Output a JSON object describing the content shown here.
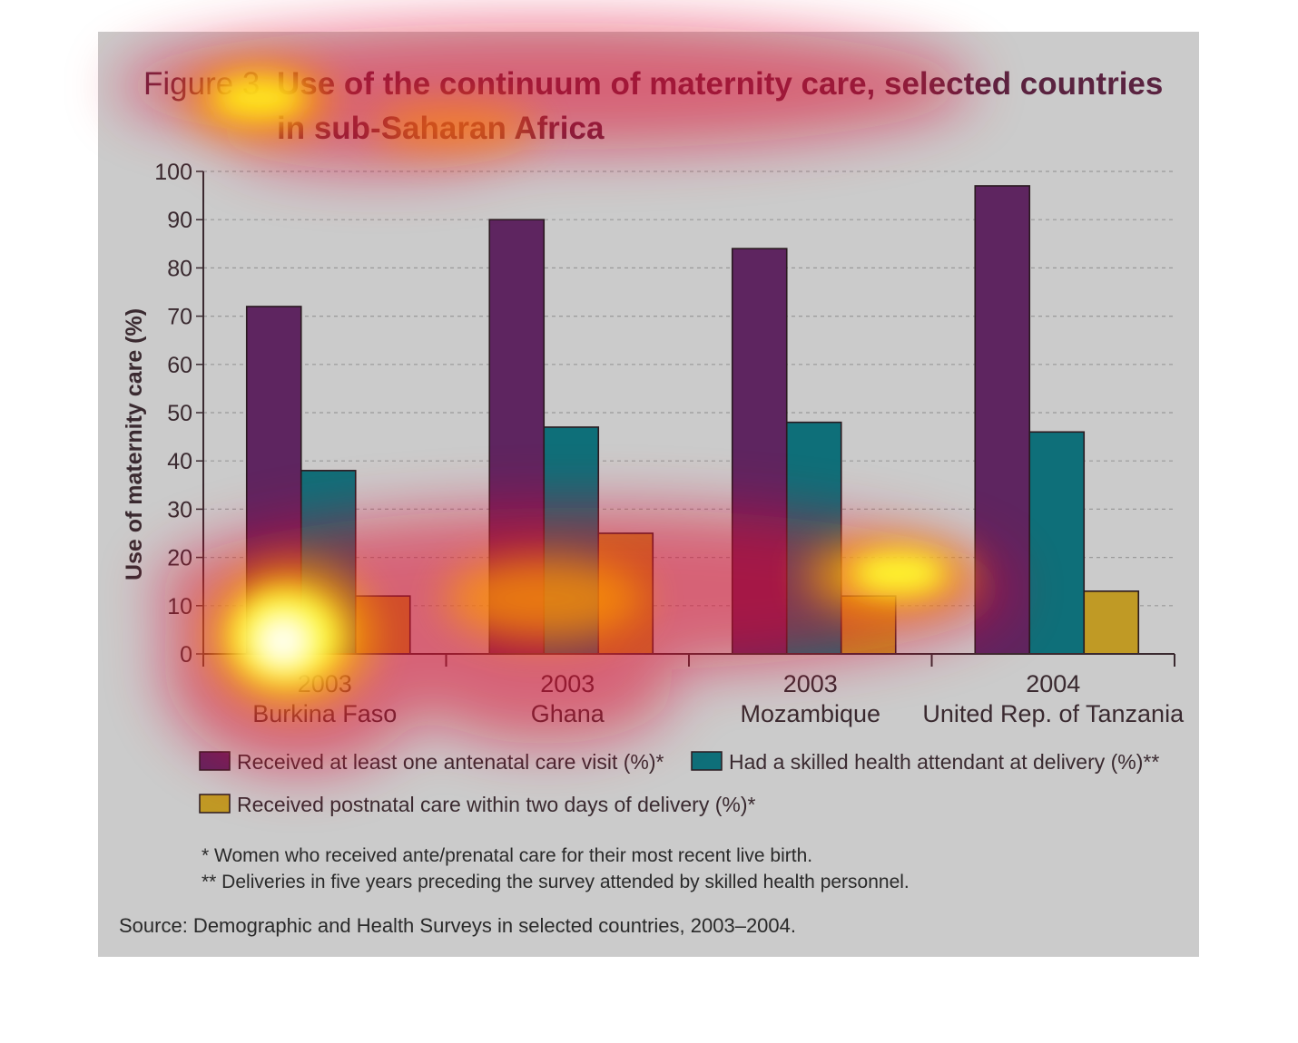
{
  "header": {
    "figure_label": "Figure 3",
    "title_line1": "Use of the continuum of maternity care, selected countries",
    "title_line2": "in sub-Saharan Africa"
  },
  "chart_data": {
    "type": "bar",
    "ylabel": "Use of maternity care (%)",
    "ylim": [
      0,
      100
    ],
    "yticks": [
      "0",
      "10",
      "20",
      "30",
      "40",
      "50",
      "60",
      "70",
      "80",
      "90",
      "100"
    ],
    "grid": "horizontal dashed",
    "categories": [
      {
        "year": "2003",
        "country": "Burkina Faso"
      },
      {
        "year": "2003",
        "country": "Ghana"
      },
      {
        "year": "2003",
        "country": "Mozambique"
      },
      {
        "year": "2004",
        "country": "United Rep. of Tanzania"
      }
    ],
    "series": [
      {
        "name": "Received at least one antenatal care visit (%)*",
        "color": "#5e2560",
        "values": [
          72,
          90,
          84,
          97
        ]
      },
      {
        "name": "Had a skilled health attendant at delivery (%)**",
        "color": "#0e6f79",
        "values": [
          38,
          47,
          48,
          46
        ]
      },
      {
        "name": "Received postnatal care within two days of delivery (%)*",
        "color": "#c09a25",
        "values": [
          12,
          25,
          12,
          13
        ]
      }
    ],
    "legend_position": "below"
  },
  "notes": [
    "* Women who received ante/prenatal care for their most recent live birth.",
    "** Deliveries in five years preceding the survey attended by skilled health personnel."
  ],
  "source": "Source: Demographic and Health Surveys in selected countries, 2003–2004."
}
